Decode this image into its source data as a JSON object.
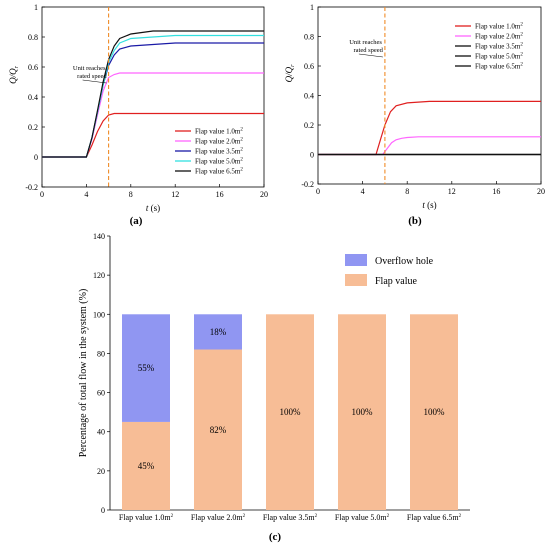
{
  "chart_data": [
    {
      "type": "line",
      "panel_label": "(a)",
      "xlabel": "t (s)",
      "ylabel": "Q/Qr",
      "xlim": [
        0,
        20
      ],
      "ylim": [
        -0.2,
        1.0
      ],
      "x_ticks": [
        0,
        4,
        8,
        12,
        16,
        20
      ],
      "y_ticks": [
        -0.2,
        0.0,
        0.2,
        0.4,
        0.6,
        0.8,
        1.0
      ],
      "grid": false,
      "annotation": {
        "line1": "Unit reaches",
        "line2": "rated speed",
        "x": 6
      },
      "legend_position": "bottom-right",
      "series": [
        {
          "name": "Flap value 1.0m²",
          "color": "#e02020",
          "x": [
            0,
            4,
            4.5,
            5,
            5.5,
            6,
            6.5,
            7,
            8,
            20
          ],
          "y": [
            0,
            0,
            0.08,
            0.17,
            0.24,
            0.28,
            0.29,
            0.29,
            0.29,
            0.29
          ]
        },
        {
          "name": "Flap value 2.0m²",
          "color": "#ff66ff",
          "x": [
            0,
            4,
            4.5,
            5,
            5.5,
            6,
            6.5,
            7,
            8,
            20
          ],
          "y": [
            0,
            0,
            0.12,
            0.28,
            0.44,
            0.53,
            0.55,
            0.56,
            0.56,
            0.56
          ]
        },
        {
          "name": "Flap value 3.5m²",
          "color": "#1a1aa6",
          "x": [
            0,
            4,
            4.5,
            5,
            5.5,
            6,
            6.5,
            7,
            8,
            10,
            12,
            20
          ],
          "y": [
            0,
            0,
            0.13,
            0.3,
            0.48,
            0.61,
            0.68,
            0.72,
            0.74,
            0.75,
            0.76,
            0.76
          ]
        },
        {
          "name": "Flap value 5.0m²",
          "color": "#33e0e0",
          "x": [
            0,
            4,
            4.5,
            5,
            5.5,
            6,
            6.5,
            7,
            8,
            10,
            12,
            20
          ],
          "y": [
            0,
            0,
            0.13,
            0.3,
            0.48,
            0.63,
            0.71,
            0.76,
            0.79,
            0.8,
            0.81,
            0.81
          ]
        },
        {
          "name": "Flap value 6.5m²",
          "color": "#111111",
          "x": [
            0,
            4,
            4.5,
            5,
            5.5,
            6,
            6.5,
            7,
            8,
            10,
            12,
            20
          ],
          "y": [
            0,
            0,
            0.13,
            0.31,
            0.5,
            0.65,
            0.74,
            0.79,
            0.82,
            0.84,
            0.84,
            0.84
          ]
        }
      ]
    },
    {
      "type": "line",
      "panel_label": "(b)",
      "xlabel": "t (s)",
      "ylabel": "Q/Qr",
      "xlim": [
        0,
        20
      ],
      "ylim": [
        -0.2,
        1.0
      ],
      "x_ticks": [
        0,
        4,
        8,
        12,
        16,
        20
      ],
      "y_ticks": [
        -0.2,
        0.0,
        0.2,
        0.4,
        0.6,
        0.8,
        1.0
      ],
      "grid": false,
      "annotation": {
        "line1": "Unit reaches",
        "line2": "rated speed",
        "x": 6
      },
      "legend_position": "top-right",
      "series": [
        {
          "name": "Flap value 1.0m²",
          "color": "#e02020",
          "x": [
            0,
            5.2,
            5.6,
            6,
            6.5,
            7,
            8,
            10,
            12,
            20
          ],
          "y": [
            0,
            0,
            0.1,
            0.2,
            0.29,
            0.33,
            0.35,
            0.36,
            0.36,
            0.36
          ]
        },
        {
          "name": "Flap value 2.0m²",
          "color": "#ff66ff",
          "x": [
            0,
            5.8,
            6.2,
            6.6,
            7,
            7.5,
            8,
            9,
            10,
            20
          ],
          "y": [
            0,
            0,
            0.04,
            0.08,
            0.1,
            0.11,
            0.115,
            0.12,
            0.12,
            0.12
          ]
        },
        {
          "name": "Flap value 3.5m²",
          "color": "#111111",
          "x": [
            0,
            20
          ],
          "y": [
            0,
            0
          ]
        },
        {
          "name": "Flap value 5.0m²",
          "color": "#111111",
          "x": [
            0,
            20
          ],
          "y": [
            0,
            0
          ]
        },
        {
          "name": "Flap value 6.5m²",
          "color": "#111111",
          "x": [
            0,
            20
          ],
          "y": [
            0,
            0
          ]
        }
      ]
    },
    {
      "type": "bar",
      "stacked": true,
      "panel_label": "(c)",
      "xlabel": "",
      "ylabel": "Percentage of total flow in the system (%)",
      "ylim": [
        0,
        140
      ],
      "y_ticks": [
        0,
        20,
        40,
        60,
        80,
        100,
        120,
        140
      ],
      "grid": false,
      "legend_position": "top-right",
      "categories": [
        "Flap value 1.0m²",
        "Flap value 2.0m²",
        "Flap value 3.5m²",
        "Flap value 5.0m²",
        "Flap value 6.5m²"
      ],
      "series": [
        {
          "name": "Flap value",
          "color": "#f7bd96",
          "values": [
            45,
            82,
            100,
            100,
            100
          ],
          "labels": [
            "45%",
            "82%",
            "100%",
            "100%",
            "100%"
          ]
        },
        {
          "name": "Overflow hole",
          "color": "#9096f2",
          "values": [
            55,
            18,
            0,
            0,
            0
          ],
          "labels": [
            "55%",
            "18%",
            "",
            "",
            ""
          ]
        }
      ]
    }
  ]
}
